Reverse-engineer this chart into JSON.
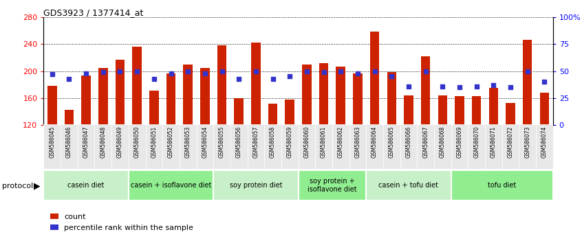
{
  "title": "GDS3923 / 1377414_at",
  "samples": [
    "GSM586045",
    "GSM586046",
    "GSM586047",
    "GSM586048",
    "GSM586049",
    "GSM586050",
    "GSM586051",
    "GSM586052",
    "GSM586053",
    "GSM586054",
    "GSM586055",
    "GSM586056",
    "GSM586057",
    "GSM586058",
    "GSM586059",
    "GSM586060",
    "GSM586061",
    "GSM586062",
    "GSM586063",
    "GSM586064",
    "GSM586065",
    "GSM586066",
    "GSM586067",
    "GSM586068",
    "GSM586069",
    "GSM586070",
    "GSM586071",
    "GSM586072",
    "GSM586073",
    "GSM586074"
  ],
  "counts": [
    178,
    143,
    193,
    205,
    217,
    236,
    171,
    196,
    210,
    205,
    238,
    160,
    242,
    152,
    158,
    210,
    212,
    207,
    196,
    258,
    199,
    164,
    222,
    164,
    163,
    163,
    175,
    153,
    246,
    168
  ],
  "percentile_ranks": [
    47,
    43,
    48,
    49,
    50,
    50,
    43,
    48,
    50,
    48,
    50,
    43,
    50,
    43,
    45,
    50,
    49,
    50,
    48,
    50,
    45,
    36,
    50,
    36,
    35,
    36,
    37,
    35,
    50,
    40
  ],
  "groups": [
    {
      "label": "casein diet",
      "start": 0,
      "end": 5,
      "color": "#c8f0c8"
    },
    {
      "label": "casein + isoflavone diet",
      "start": 5,
      "end": 10,
      "color": "#90ee90"
    },
    {
      "label": "soy protein diet",
      "start": 10,
      "end": 15,
      "color": "#c8f0c8"
    },
    {
      "label": "soy protein +\nisoflavone diet",
      "start": 15,
      "end": 19,
      "color": "#90ee90"
    },
    {
      "label": "casein + tofu diet",
      "start": 19,
      "end": 24,
      "color": "#c8f0c8"
    },
    {
      "label": "tofu diet",
      "start": 24,
      "end": 30,
      "color": "#90ee90"
    }
  ],
  "bar_color": "#cc2200",
  "dot_color": "#3333cc",
  "ylim_left": [
    120,
    280
  ],
  "ylim_right": [
    0,
    100
  ],
  "yticks_left": [
    120,
    160,
    200,
    240,
    280
  ],
  "yticks_right": [
    0,
    25,
    50,
    75,
    100
  ],
  "ytick_labels_right": [
    "0",
    "25",
    "50",
    "75",
    "100%"
  ],
  "bar_width": 0.55,
  "dot_size": 22
}
